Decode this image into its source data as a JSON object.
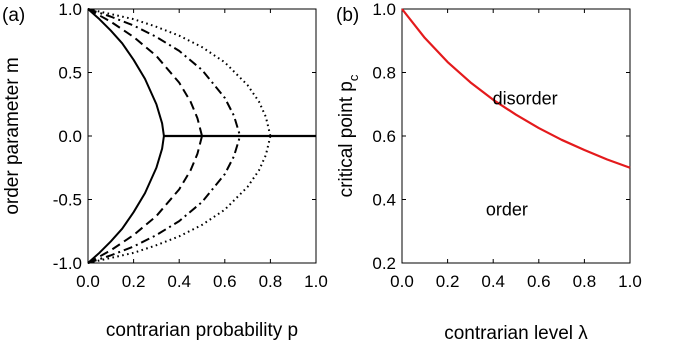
{
  "chart_data": [
    {
      "type": "line",
      "panel_label": "(a)",
      "title": "",
      "xlabel": "contrarian probability p",
      "ylabel": "order parameter m",
      "xlim": [
        0,
        1
      ],
      "ylim": [
        -1,
        1
      ],
      "xticks": [
        "0.0",
        "0.2",
        "0.4",
        "0.6",
        "0.8",
        "1.0"
      ],
      "yticks": [
        "-1.0",
        "-0.5",
        "0.0",
        "0.5",
        "1.0"
      ],
      "grid": false,
      "series": [
        {
          "style": "solid",
          "color": "#000000",
          "critical_p": 0.333,
          "x": [
            0.0,
            0.05,
            0.1,
            0.15,
            0.2,
            0.25,
            0.3,
            0.325,
            0.333
          ],
          "y": [
            1.0,
            0.92,
            0.83,
            0.73,
            0.6,
            0.45,
            0.25,
            0.1,
            0.0
          ]
        },
        {
          "style": "dashed",
          "color": "#000000",
          "critical_p": 0.5,
          "x": [
            0.0,
            0.1,
            0.2,
            0.3,
            0.4,
            0.45,
            0.48,
            0.5
          ],
          "y": [
            1.0,
            0.9,
            0.78,
            0.63,
            0.42,
            0.27,
            0.14,
            0.0
          ]
        },
        {
          "style": "dashdot",
          "color": "#000000",
          "critical_p": 0.667,
          "x": [
            0.0,
            0.1,
            0.2,
            0.3,
            0.4,
            0.5,
            0.6,
            0.64,
            0.667
          ],
          "y": [
            1.0,
            0.94,
            0.87,
            0.78,
            0.67,
            0.52,
            0.3,
            0.16,
            0.0
          ]
        },
        {
          "style": "dotted",
          "color": "#000000",
          "critical_p": 0.8,
          "x": [
            0.0,
            0.1,
            0.2,
            0.3,
            0.4,
            0.5,
            0.6,
            0.7,
            0.75,
            0.78,
            0.8
          ],
          "y": [
            1.0,
            0.96,
            0.92,
            0.86,
            0.79,
            0.7,
            0.58,
            0.4,
            0.27,
            0.15,
            0.0
          ]
        }
      ],
      "disordered_branch": {
        "style": "solid",
        "color": "#000000",
        "x": [
          0.333,
          1.0
        ],
        "y": [
          0.0,
          0.0
        ]
      }
    },
    {
      "type": "line",
      "panel_label": "(b)",
      "title": "",
      "xlabel": "contrarian level λ",
      "ylabel": "critical point p",
      "ylabel_subscript": "c",
      "xlim": [
        0,
        1
      ],
      "ylim": [
        0.2,
        1.0
      ],
      "xticks": [
        "0.0",
        "0.2",
        "0.4",
        "0.6",
        "0.8",
        "1.0"
      ],
      "yticks": [
        "0.2",
        "0.4",
        "0.6",
        "0.8",
        "1.0"
      ],
      "grid": false,
      "series": [
        {
          "style": "solid",
          "color": "#e41a1c",
          "x": [
            0.0,
            0.1,
            0.2,
            0.3,
            0.4,
            0.5,
            0.6,
            0.7,
            0.8,
            0.9,
            1.0
          ],
          "y": [
            1.0,
            0.909,
            0.833,
            0.769,
            0.714,
            0.667,
            0.625,
            0.588,
            0.556,
            0.526,
            0.5
          ]
        }
      ],
      "annotations": [
        {
          "text": "disorder",
          "x": 0.54,
          "y": 0.7
        },
        {
          "text": "order",
          "x": 0.46,
          "y": 0.35
        }
      ]
    }
  ]
}
